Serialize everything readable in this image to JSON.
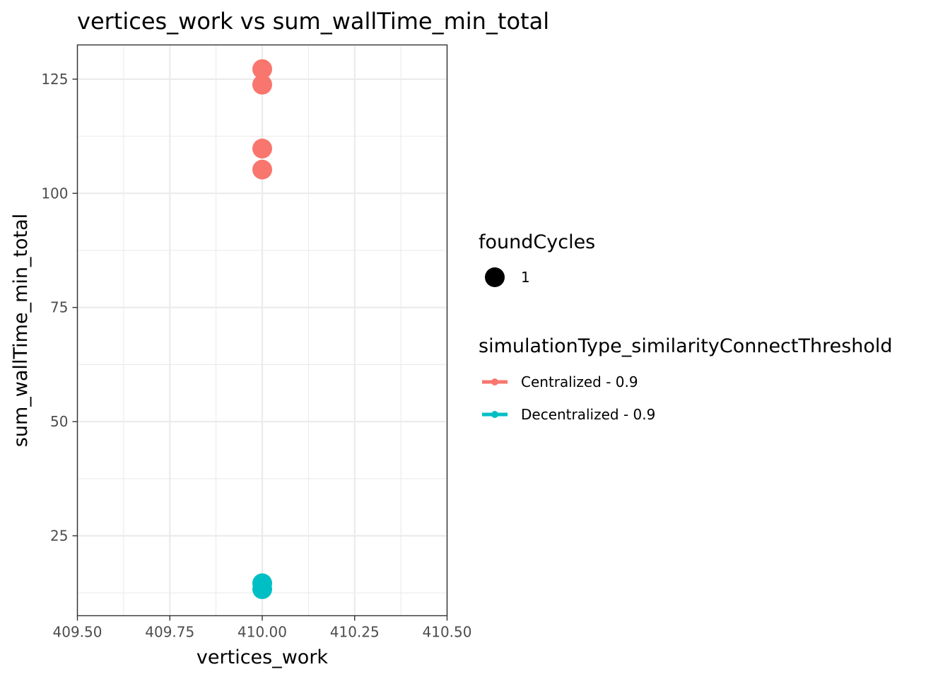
{
  "chart_data": {
    "type": "scatter",
    "title": "vertices_work  vs  sum_wallTime_min_total",
    "xlabel": "vertices_work",
    "ylabel": "sum_wallTime_min_total",
    "xlim": [
      409.5,
      410.5
    ],
    "ylim": [
      7.5,
      132.5
    ],
    "x_ticks": [
      409.5,
      409.75,
      410.0,
      410.25,
      410.5
    ],
    "x_tick_labels": [
      "409.50",
      "409.75",
      "410.00",
      "410.25",
      "410.50"
    ],
    "y_ticks": [
      25,
      50,
      75,
      100,
      125
    ],
    "y_tick_labels": [
      "25",
      "50",
      "75",
      "100",
      "125"
    ],
    "grid": true,
    "legend_position": "right",
    "size_legend": {
      "title": "foundCycles",
      "entries": [
        "1"
      ]
    },
    "color_legend": {
      "title": "simulationType_similarityConnectThreshold"
    },
    "series": [
      {
        "name": "Centralized - 0.9",
        "color": "#F8766D",
        "points": [
          {
            "x": 410.0,
            "y": 127.2
          },
          {
            "x": 410.0,
            "y": 123.8
          },
          {
            "x": 410.0,
            "y": 109.8
          },
          {
            "x": 410.0,
            "y": 105.2
          }
        ]
      },
      {
        "name": "Decentralized - 0.9",
        "color": "#00BFC4",
        "points": [
          {
            "x": 410.0,
            "y": 14.6
          },
          {
            "x": 410.0,
            "y": 13.3
          }
        ]
      }
    ]
  }
}
